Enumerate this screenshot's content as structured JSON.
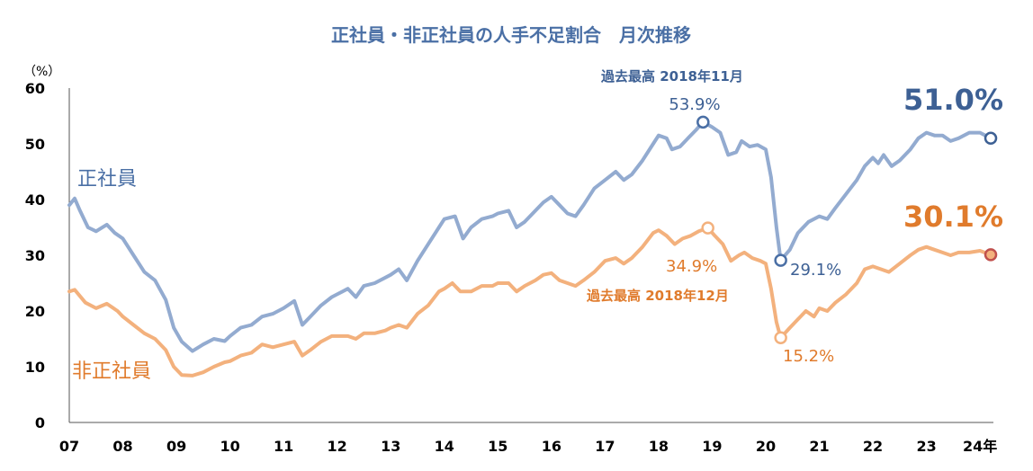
{
  "chart_data": {
    "type": "line",
    "title": "正社員・非正社員の人手不足割合　月次推移",
    "ylabel_unit": "（%）",
    "ylim": [
      0,
      60
    ],
    "yticks": [
      "0",
      "10",
      "20",
      "30",
      "40",
      "50",
      "60"
    ],
    "x_start": 2007.0,
    "x_end": 2024.25,
    "xticks": [
      {
        "label": "07",
        "x": 2007
      },
      {
        "label": "08",
        "x": 2008
      },
      {
        "label": "09",
        "x": 2009
      },
      {
        "label": "10",
        "x": 2010
      },
      {
        "label": "11",
        "x": 2011
      },
      {
        "label": "12",
        "x": 2012
      },
      {
        "label": "13",
        "x": 2013
      },
      {
        "label": "14",
        "x": 2014
      },
      {
        "label": "15",
        "x": 2015
      },
      {
        "label": "16",
        "x": 2016
      },
      {
        "label": "17",
        "x": 2017
      },
      {
        "label": "18",
        "x": 2018
      },
      {
        "label": "19",
        "x": 2019
      },
      {
        "label": "20",
        "x": 2020
      },
      {
        "label": "21",
        "x": 2021
      },
      {
        "label": "22",
        "x": 2022
      },
      {
        "label": "23",
        "x": 2023
      },
      {
        "label": "24年",
        "x": 2024
      }
    ],
    "series": [
      {
        "name": "正社員",
        "color": "#93abd0",
        "points": [
          [
            2007.0,
            39.0
          ],
          [
            2007.1,
            40.2
          ],
          [
            2007.2,
            38.0
          ],
          [
            2007.35,
            35.0
          ],
          [
            2007.5,
            34.3
          ],
          [
            2007.7,
            35.5
          ],
          [
            2007.85,
            34.0
          ],
          [
            2008.0,
            33.0
          ],
          [
            2008.2,
            30.0
          ],
          [
            2008.4,
            27.0
          ],
          [
            2008.6,
            25.5
          ],
          [
            2008.8,
            22.0
          ],
          [
            2008.95,
            17.0
          ],
          [
            2009.1,
            14.5
          ],
          [
            2009.3,
            12.8
          ],
          [
            2009.5,
            14.0
          ],
          [
            2009.7,
            15.0
          ],
          [
            2009.9,
            14.6
          ],
          [
            2010.0,
            15.5
          ],
          [
            2010.2,
            17.0
          ],
          [
            2010.4,
            17.5
          ],
          [
            2010.6,
            19.0
          ],
          [
            2010.8,
            19.5
          ],
          [
            2011.0,
            20.5
          ],
          [
            2011.2,
            21.8
          ],
          [
            2011.35,
            17.5
          ],
          [
            2011.5,
            19.0
          ],
          [
            2011.7,
            21.0
          ],
          [
            2011.9,
            22.5
          ],
          [
            2012.0,
            23.0
          ],
          [
            2012.2,
            24.0
          ],
          [
            2012.35,
            22.5
          ],
          [
            2012.5,
            24.5
          ],
          [
            2012.7,
            25.0
          ],
          [
            2012.9,
            26.0
          ],
          [
            2013.0,
            26.5
          ],
          [
            2013.15,
            27.5
          ],
          [
            2013.3,
            25.5
          ],
          [
            2013.5,
            29.0
          ],
          [
            2013.7,
            32.0
          ],
          [
            2013.9,
            35.0
          ],
          [
            2014.0,
            36.5
          ],
          [
            2014.2,
            37.0
          ],
          [
            2014.35,
            33.0
          ],
          [
            2014.5,
            35.0
          ],
          [
            2014.7,
            36.5
          ],
          [
            2014.9,
            37.0
          ],
          [
            2015.0,
            37.5
          ],
          [
            2015.2,
            38.0
          ],
          [
            2015.35,
            35.0
          ],
          [
            2015.5,
            36.0
          ],
          [
            2015.7,
            38.0
          ],
          [
            2015.85,
            39.5
          ],
          [
            2016.0,
            40.5
          ],
          [
            2016.15,
            39.0
          ],
          [
            2016.3,
            37.5
          ],
          [
            2016.45,
            37.0
          ],
          [
            2016.6,
            39.0
          ],
          [
            2016.8,
            42.0
          ],
          [
            2017.0,
            43.5
          ],
          [
            2017.2,
            45.0
          ],
          [
            2017.35,
            43.5
          ],
          [
            2017.5,
            44.5
          ],
          [
            2017.7,
            47.0
          ],
          [
            2017.9,
            50.0
          ],
          [
            2018.0,
            51.5
          ],
          [
            2018.15,
            51.0
          ],
          [
            2018.25,
            49.0
          ],
          [
            2018.4,
            49.5
          ],
          [
            2018.55,
            51.0
          ],
          [
            2018.7,
            52.5
          ],
          [
            2018.83,
            53.9
          ],
          [
            2019.0,
            53.0
          ],
          [
            2019.15,
            52.0
          ],
          [
            2019.3,
            48.0
          ],
          [
            2019.45,
            48.5
          ],
          [
            2019.55,
            50.5
          ],
          [
            2019.7,
            49.5
          ],
          [
            2019.85,
            49.8
          ],
          [
            2020.0,
            49.0
          ],
          [
            2020.1,
            44.0
          ],
          [
            2020.2,
            35.0
          ],
          [
            2020.28,
            29.1
          ],
          [
            2020.45,
            31.0
          ],
          [
            2020.6,
            34.0
          ],
          [
            2020.8,
            36.0
          ],
          [
            2021.0,
            37.0
          ],
          [
            2021.15,
            36.5
          ],
          [
            2021.3,
            38.5
          ],
          [
            2021.5,
            41.0
          ],
          [
            2021.7,
            43.5
          ],
          [
            2021.85,
            46.0
          ],
          [
            2022.0,
            47.5
          ],
          [
            2022.1,
            46.5
          ],
          [
            2022.2,
            48.0
          ],
          [
            2022.35,
            46.0
          ],
          [
            2022.5,
            47.0
          ],
          [
            2022.7,
            49.0
          ],
          [
            2022.85,
            51.0
          ],
          [
            2023.0,
            52.0
          ],
          [
            2023.15,
            51.5
          ],
          [
            2023.3,
            51.5
          ],
          [
            2023.45,
            50.5
          ],
          [
            2023.6,
            51.0
          ],
          [
            2023.8,
            52.0
          ],
          [
            2024.0,
            52.0
          ],
          [
            2024.2,
            51.0
          ]
        ]
      },
      {
        "name": "非正社員",
        "color": "#f3b17d",
        "points": [
          [
            2007.0,
            23.5
          ],
          [
            2007.1,
            23.8
          ],
          [
            2007.3,
            21.5
          ],
          [
            2007.5,
            20.5
          ],
          [
            2007.7,
            21.3
          ],
          [
            2007.9,
            20.0
          ],
          [
            2008.0,
            19.0
          ],
          [
            2008.2,
            17.5
          ],
          [
            2008.4,
            16.0
          ],
          [
            2008.6,
            15.0
          ],
          [
            2008.8,
            13.0
          ],
          [
            2008.95,
            10.0
          ],
          [
            2009.1,
            8.5
          ],
          [
            2009.3,
            8.4
          ],
          [
            2009.5,
            9.0
          ],
          [
            2009.7,
            10.0
          ],
          [
            2009.9,
            10.8
          ],
          [
            2010.0,
            11.0
          ],
          [
            2010.2,
            12.0
          ],
          [
            2010.4,
            12.5
          ],
          [
            2010.6,
            14.0
          ],
          [
            2010.8,
            13.5
          ],
          [
            2011.0,
            14.0
          ],
          [
            2011.2,
            14.5
          ],
          [
            2011.35,
            12.0
          ],
          [
            2011.5,
            13.0
          ],
          [
            2011.7,
            14.5
          ],
          [
            2011.9,
            15.5
          ],
          [
            2012.0,
            15.5
          ],
          [
            2012.2,
            15.5
          ],
          [
            2012.35,
            15.0
          ],
          [
            2012.5,
            16.0
          ],
          [
            2012.7,
            16.0
          ],
          [
            2012.9,
            16.5
          ],
          [
            2013.0,
            17.0
          ],
          [
            2013.15,
            17.5
          ],
          [
            2013.3,
            17.0
          ],
          [
            2013.5,
            19.5
          ],
          [
            2013.7,
            21.0
          ],
          [
            2013.9,
            23.5
          ],
          [
            2014.0,
            24.0
          ],
          [
            2014.15,
            25.0
          ],
          [
            2014.3,
            23.5
          ],
          [
            2014.5,
            23.5
          ],
          [
            2014.7,
            24.5
          ],
          [
            2014.9,
            24.5
          ],
          [
            2015.0,
            25.0
          ],
          [
            2015.2,
            25.0
          ],
          [
            2015.35,
            23.5
          ],
          [
            2015.5,
            24.5
          ],
          [
            2015.7,
            25.5
          ],
          [
            2015.85,
            26.5
          ],
          [
            2016.0,
            26.8
          ],
          [
            2016.15,
            25.5
          ],
          [
            2016.3,
            25.0
          ],
          [
            2016.45,
            24.5
          ],
          [
            2016.6,
            25.5
          ],
          [
            2016.8,
            27.0
          ],
          [
            2017.0,
            29.0
          ],
          [
            2017.2,
            29.5
          ],
          [
            2017.35,
            28.5
          ],
          [
            2017.5,
            29.5
          ],
          [
            2017.7,
            31.5
          ],
          [
            2017.9,
            34.0
          ],
          [
            2018.0,
            34.5
          ],
          [
            2018.15,
            33.5
          ],
          [
            2018.3,
            32.0
          ],
          [
            2018.45,
            33.0
          ],
          [
            2018.6,
            33.5
          ],
          [
            2018.75,
            34.3
          ],
          [
            2018.92,
            34.9
          ],
          [
            2019.05,
            33.5
          ],
          [
            2019.2,
            32.0
          ],
          [
            2019.35,
            29.0
          ],
          [
            2019.5,
            30.0
          ],
          [
            2019.6,
            30.5
          ],
          [
            2019.75,
            29.5
          ],
          [
            2019.9,
            29.0
          ],
          [
            2020.0,
            28.5
          ],
          [
            2020.1,
            24.0
          ],
          [
            2020.2,
            18.0
          ],
          [
            2020.28,
            15.2
          ],
          [
            2020.45,
            17.0
          ],
          [
            2020.6,
            18.5
          ],
          [
            2020.75,
            20.0
          ],
          [
            2020.9,
            19.0
          ],
          [
            2021.0,
            20.5
          ],
          [
            2021.15,
            20.0
          ],
          [
            2021.3,
            21.5
          ],
          [
            2021.5,
            23.0
          ],
          [
            2021.7,
            25.0
          ],
          [
            2021.85,
            27.5
          ],
          [
            2022.0,
            28.0
          ],
          [
            2022.15,
            27.5
          ],
          [
            2022.3,
            27.0
          ],
          [
            2022.5,
            28.5
          ],
          [
            2022.7,
            30.0
          ],
          [
            2022.85,
            31.0
          ],
          [
            2023.0,
            31.5
          ],
          [
            2023.15,
            31.0
          ],
          [
            2023.3,
            30.5
          ],
          [
            2023.45,
            30.0
          ],
          [
            2023.6,
            30.5
          ],
          [
            2023.8,
            30.5
          ],
          [
            2024.0,
            30.8
          ],
          [
            2024.2,
            30.1
          ]
        ]
      }
    ],
    "markers": [
      {
        "series": 0,
        "x": 2018.83,
        "y": 53.9,
        "fill": "#ffffff",
        "stroke": "#4a6fa5"
      },
      {
        "series": 0,
        "x": 2020.28,
        "y": 29.1,
        "fill": "#ffffff",
        "stroke": "#4a6fa5"
      },
      {
        "series": 0,
        "x": 2024.2,
        "y": 51.0,
        "fill": "#ffffff",
        "stroke": "#3d6094"
      },
      {
        "series": 1,
        "x": 2018.92,
        "y": 34.9,
        "fill": "#ffffff",
        "stroke": "#f3b17d"
      },
      {
        "series": 1,
        "x": 2020.28,
        "y": 15.2,
        "fill": "#ffffff",
        "stroke": "#f3b17d"
      },
      {
        "series": 1,
        "x": 2024.2,
        "y": 30.1,
        "fill": "#f3b17d",
        "stroke": "#c0504d"
      }
    ],
    "annotations": {
      "series_label_regular": "正社員",
      "series_label_nonregular": "非正社員",
      "peak_regular_caption": "過去最高 2018年11月",
      "peak_regular_value": "53.9%",
      "peak_nonregular_caption": "過去最高 2018年12月",
      "peak_nonregular_value": "34.9%",
      "trough_regular_value": "29.1%",
      "trough_nonregular_value": "15.2%",
      "latest_regular_value": "51.0%",
      "latest_nonregular_value": "30.1%"
    }
  }
}
